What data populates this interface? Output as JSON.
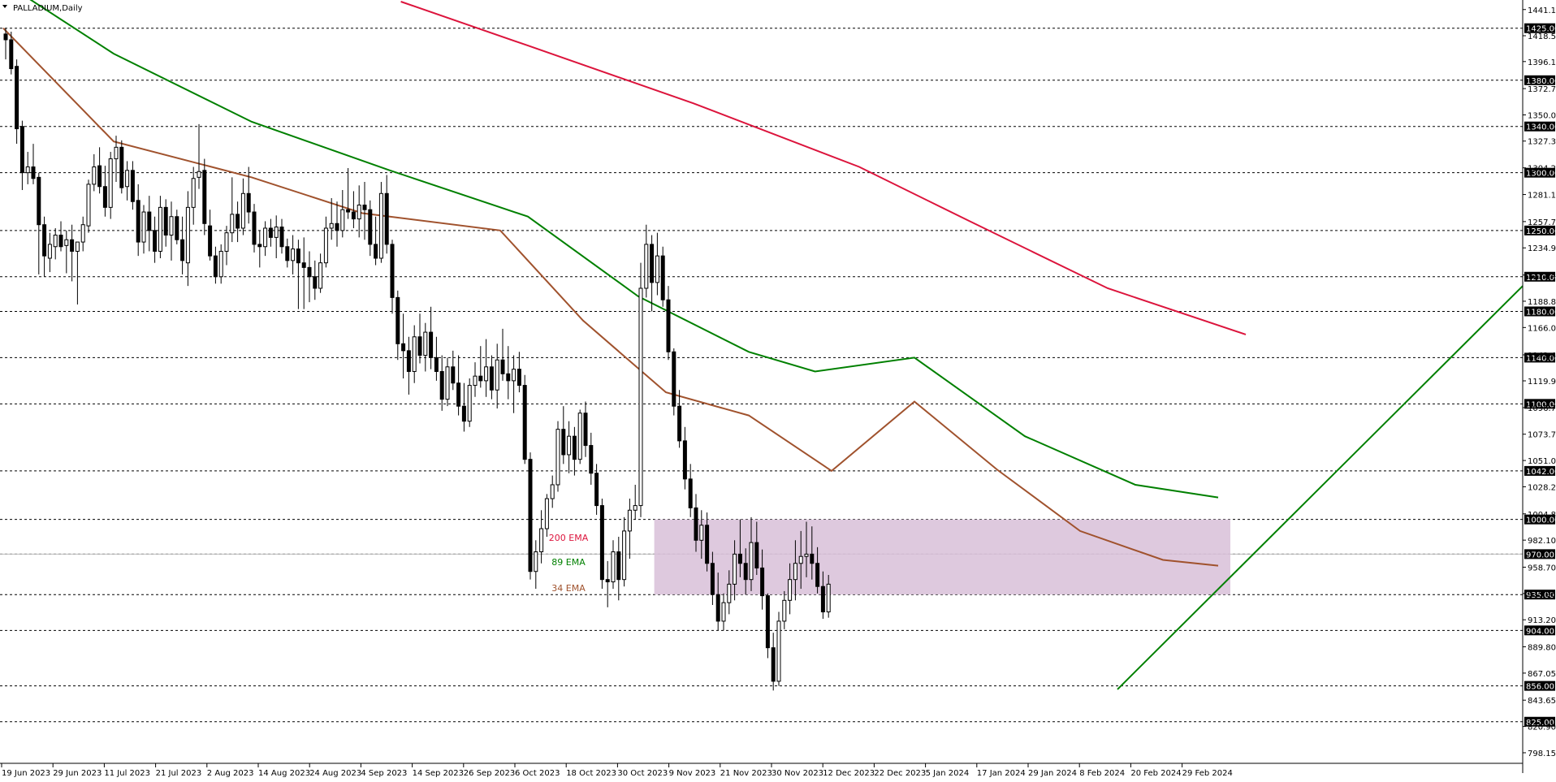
{
  "window": {
    "title": "PALLADIUM,Daily"
  },
  "chart_data": {
    "type": "candlestick",
    "symbol": "PALLADIUM",
    "timeframe": "Daily",
    "title": "PALLADIUM,Daily",
    "ylim": [
      789,
      1448
    ],
    "grid": "horizontal dashed lines at key levels",
    "price_ticks": [
      1441.15,
      1418.5,
      1396.15,
      1372.75,
      1350.0,
      1327.35,
      1304.2,
      1281.1,
      1257.7,
      1234.95,
      1211.45,
      1188.8,
      1166.05,
      1142.4,
      1119.9,
      1096.75,
      1073.75,
      1051.0,
      1028.25,
      1004.85,
      982.1,
      958.7,
      935.95,
      913.2,
      889.8,
      867.05,
      843.65,
      820.9,
      798.15
    ],
    "level_tags": [
      {
        "label": "1425.00",
        "value": 1425,
        "color": "#000000"
      },
      {
        "label": "1380.00",
        "value": 1380,
        "color": "#000000"
      },
      {
        "label": "1340.00",
        "value": 1340,
        "color": "#000000"
      },
      {
        "label": "1300.00",
        "value": 1300,
        "color": "#000000"
      },
      {
        "label": "1250.00",
        "value": 1250,
        "color": "#000000"
      },
      {
        "label": "1210.00",
        "value": 1210,
        "color": "#000000"
      },
      {
        "label": "1180.00",
        "value": 1180,
        "color": "#000000"
      },
      {
        "label": "1140.00",
        "value": 1140,
        "color": "#000000"
      },
      {
        "label": "1100.00",
        "value": 1100,
        "color": "#000000"
      },
      {
        "label": "1042.00",
        "value": 1042,
        "color": "#000000"
      },
      {
        "label": "1000.00",
        "value": 1000,
        "color": "#000000"
      },
      {
        "label": "970.00",
        "value": 970,
        "color": "#000000"
      },
      {
        "label": "935.00",
        "value": 935,
        "color": "#000000"
      },
      {
        "label": "904.00",
        "value": 904,
        "color": "#000000"
      },
      {
        "label": "856.00",
        "value": 856,
        "color": "#000000"
      },
      {
        "label": "825.00",
        "value": 825,
        "color": "#000000"
      }
    ],
    "date_ticks": [
      "19 Jun 2023",
      "29 Jun 2023",
      "11 Jul 2023",
      "21 Jul 2023",
      "2 Aug 2023",
      "14 Aug 2023",
      "24 Aug 2023",
      "4 Sep 2023",
      "14 Sep 2023",
      "26 Sep 2023",
      "6 Oct 2023",
      "18 Oct 2023",
      "30 Oct 2023",
      "9 Nov 2023",
      "21 Nov 2023",
      "30 Nov 2023",
      "12 Dec 2023",
      "22 Dec 2023",
      "5 Jan 2024",
      "17 Jan 2024",
      "29 Jan 2024",
      "8 Feb 2024",
      "20 Feb 2024",
      "29 Feb 2024"
    ],
    "zone": {
      "from_date_index": 13,
      "to_date_index": 24,
      "low": 935,
      "high": 1000,
      "color": "#d8bfd8"
    },
    "annotations": [
      {
        "text": "200 EMA",
        "color": "#dc143c"
      },
      {
        "text": "89 EMA",
        "color": "#008000"
      },
      {
        "text": "34 EMA",
        "color": "#a0522d"
      }
    ],
    "trendline": {
      "color": "#008000",
      "from": {
        "bar": 198,
        "price": 853
      },
      "to": {
        "bar": 280,
        "price": 1202
      }
    },
    "series": [
      {
        "name": "200 EMA",
        "color": "#dc143c",
        "points": [
          [
            72,
            1448
          ],
          [
            95,
            1410
          ],
          [
            125,
            1360
          ],
          [
            155,
            1305
          ],
          [
            175,
            1258
          ],
          [
            200,
            1200
          ],
          [
            225,
            1160
          ]
        ]
      },
      {
        "name": "89 EMA",
        "color": "#008000",
        "points": [
          [
            0,
            1465
          ],
          [
            20,
            1403
          ],
          [
            45,
            1344
          ],
          [
            70,
            1302
          ],
          [
            95,
            1262
          ],
          [
            115,
            1193
          ],
          [
            135,
            1145
          ],
          [
            147,
            1128
          ],
          [
            165,
            1140
          ],
          [
            185,
            1072
          ],
          [
            205,
            1030
          ],
          [
            220,
            1019
          ]
        ]
      },
      {
        "name": "34 EMA",
        "color": "#a0522d",
        "points": [
          [
            0,
            1425
          ],
          [
            20,
            1327
          ],
          [
            45,
            1296
          ],
          [
            65,
            1265
          ],
          [
            90,
            1250
          ],
          [
            105,
            1172
          ],
          [
            120,
            1110
          ],
          [
            135,
            1090
          ],
          [
            150,
            1042
          ],
          [
            165,
            1102
          ],
          [
            180,
            1043
          ],
          [
            195,
            990
          ],
          [
            210,
            965
          ],
          [
            220,
            960
          ]
        ]
      }
    ],
    "candles": [
      [
        1420,
        1425,
        1398,
        1415
      ],
      [
        1415,
        1422,
        1385,
        1390
      ],
      [
        1392,
        1398,
        1325,
        1338
      ],
      [
        1340,
        1345,
        1285,
        1300
      ],
      [
        1300,
        1318,
        1290,
        1305
      ],
      [
        1305,
        1325,
        1290,
        1295
      ],
      [
        1296,
        1300,
        1212,
        1255
      ],
      [
        1255,
        1262,
        1210,
        1228
      ],
      [
        1226,
        1248,
        1214,
        1238
      ],
      [
        1236,
        1252,
        1225,
        1246
      ],
      [
        1246,
        1258,
        1232,
        1236
      ],
      [
        1237,
        1250,
        1213,
        1242
      ],
      [
        1242,
        1255,
        1206,
        1232
      ],
      [
        1232,
        1238,
        1186,
        1240
      ],
      [
        1240,
        1262,
        1232,
        1255
      ],
      [
        1254,
        1294,
        1248,
        1290
      ],
      [
        1290,
        1316,
        1284,
        1305
      ],
      [
        1306,
        1322,
        1282,
        1288
      ],
      [
        1288,
        1306,
        1262,
        1270
      ],
      [
        1270,
        1318,
        1260,
        1312
      ],
      [
        1312,
        1332,
        1292,
        1322
      ],
      [
        1322,
        1328,
        1282,
        1287
      ],
      [
        1288,
        1310,
        1276,
        1302
      ],
      [
        1302,
        1310,
        1268,
        1275
      ],
      [
        1276,
        1290,
        1228,
        1240
      ],
      [
        1240,
        1272,
        1230,
        1266
      ],
      [
        1266,
        1280,
        1232,
        1250
      ],
      [
        1250,
        1262,
        1222,
        1232
      ],
      [
        1232,
        1280,
        1226,
        1270
      ],
      [
        1270,
        1277,
        1236,
        1246
      ],
      [
        1246,
        1275,
        1224,
        1262
      ],
      [
        1262,
        1268,
        1238,
        1242
      ],
      [
        1242,
        1262,
        1212,
        1224
      ],
      [
        1222,
        1284,
        1202,
        1270
      ],
      [
        1270,
        1305,
        1255,
        1295
      ],
      [
        1296,
        1342,
        1286,
        1301
      ],
      [
        1302,
        1312,
        1246,
        1256
      ],
      [
        1254,
        1268,
        1224,
        1228
      ],
      [
        1228,
        1236,
        1204,
        1210
      ],
      [
        1210,
        1238,
        1204,
        1232
      ],
      [
        1232,
        1254,
        1220,
        1248
      ],
      [
        1248,
        1296,
        1240,
        1264
      ],
      [
        1264,
        1275,
        1240,
        1252
      ],
      [
        1252,
        1295,
        1246,
        1282
      ],
      [
        1282,
        1305,
        1256,
        1266
      ],
      [
        1266,
        1273,
        1231,
        1238
      ],
      [
        1238,
        1250,
        1218,
        1236
      ],
      [
        1236,
        1258,
        1228,
        1252
      ],
      [
        1252,
        1260,
        1236,
        1244
      ],
      [
        1244,
        1263,
        1226,
        1253
      ],
      [
        1253,
        1260,
        1230,
        1236
      ],
      [
        1236,
        1243,
        1218,
        1224
      ],
      [
        1224,
        1246,
        1212,
        1234
      ],
      [
        1234,
        1242,
        1182,
        1222
      ],
      [
        1222,
        1244,
        1182,
        1218
      ],
      [
        1218,
        1232,
        1188,
        1210
      ],
      [
        1210,
        1224,
        1190,
        1200
      ],
      [
        1200,
        1230,
        1196,
        1222
      ],
      [
        1222,
        1262,
        1218,
        1252
      ],
      [
        1252,
        1278,
        1242,
        1256
      ],
      [
        1256,
        1275,
        1236,
        1250
      ],
      [
        1250,
        1285,
        1244,
        1268
      ],
      [
        1268,
        1304,
        1260,
        1266
      ],
      [
        1266,
        1284,
        1252,
        1260
      ],
      [
        1260,
        1289,
        1244,
        1272
      ],
      [
        1272,
        1292,
        1242,
        1268
      ],
      [
        1268,
        1276,
        1228,
        1238
      ],
      [
        1238,
        1262,
        1220,
        1226
      ],
      [
        1226,
        1292,
        1222,
        1282
      ],
      [
        1282,
        1298,
        1230,
        1238
      ],
      [
        1238,
        1242,
        1178,
        1192
      ],
      [
        1192,
        1198,
        1138,
        1152
      ],
      [
        1152,
        1178,
        1122,
        1146
      ],
      [
        1146,
        1158,
        1108,
        1128
      ],
      [
        1128,
        1168,
        1118,
        1158
      ],
      [
        1158,
        1178,
        1135,
        1142
      ],
      [
        1142,
        1170,
        1128,
        1162
      ],
      [
        1162,
        1184,
        1130,
        1140
      ],
      [
        1140,
        1158,
        1120,
        1128
      ],
      [
        1128,
        1142,
        1094,
        1104
      ],
      [
        1104,
        1140,
        1098,
        1132
      ],
      [
        1132,
        1146,
        1112,
        1118
      ],
      [
        1118,
        1142,
        1090,
        1098
      ],
      [
        1098,
        1118,
        1076,
        1085
      ],
      [
        1085,
        1122,
        1080,
        1116
      ],
      [
        1116,
        1136,
        1106,
        1124
      ],
      [
        1124,
        1150,
        1114,
        1120
      ],
      [
        1120,
        1156,
        1106,
        1132
      ],
      [
        1132,
        1142,
        1104,
        1112
      ],
      [
        1112,
        1152,
        1096,
        1138
      ],
      [
        1138,
        1165,
        1120,
        1126
      ],
      [
        1126,
        1150,
        1104,
        1120
      ],
      [
        1120,
        1142,
        1092,
        1130
      ],
      [
        1130,
        1145,
        1110,
        1116
      ],
      [
        1116,
        1125,
        1048,
        1052
      ],
      [
        1052,
        1058,
        948,
        955
      ],
      [
        955,
        982,
        940,
        972
      ],
      [
        972,
        1008,
        962,
        992
      ],
      [
        992,
        1022,
        985,
        1018
      ],
      [
        1018,
        1038,
        1010,
        1030
      ],
      [
        1030,
        1085,
        1024,
        1078
      ],
      [
        1078,
        1098,
        1048,
        1056
      ],
      [
        1056,
        1085,
        1040,
        1072
      ],
      [
        1072,
        1080,
        1038,
        1052
      ],
      [
        1052,
        1095,
        1048,
        1092
      ],
      [
        1092,
        1102,
        1054,
        1064
      ],
      [
        1064,
        1075,
        1030,
        1040
      ],
      [
        1040,
        1048,
        1004,
        1012
      ],
      [
        1012,
        1018,
        940,
        948
      ],
      [
        948,
        964,
        924,
        946
      ],
      [
        946,
        982,
        940,
        972
      ],
      [
        972,
        985,
        930,
        948
      ],
      [
        948,
        1002,
        942,
        990
      ],
      [
        990,
        1018,
        966,
        1008
      ],
      [
        1008,
        1030,
        1000,
        1012
      ],
      [
        1012,
        1222,
        1002,
        1200
      ],
      [
        1200,
        1255,
        1192,
        1238
      ],
      [
        1238,
        1246,
        1180,
        1205
      ],
      [
        1205,
        1248,
        1194,
        1228
      ],
      [
        1228,
        1236,
        1184,
        1190
      ],
      [
        1190,
        1202,
        1138,
        1145
      ],
      [
        1145,
        1148,
        1090,
        1098
      ],
      [
        1098,
        1112,
        1062,
        1068
      ],
      [
        1068,
        1080,
        1026,
        1035
      ],
      [
        1035,
        1048,
        1002,
        1010
      ],
      [
        1010,
        1022,
        972,
        982
      ],
      [
        982,
        1008,
        966,
        995
      ],
      [
        995,
        1006,
        955,
        962
      ],
      [
        962,
        972,
        926,
        935
      ],
      [
        935,
        954,
        904,
        912
      ],
      [
        912,
        936,
        904,
        928
      ],
      [
        928,
        956,
        918,
        944
      ],
      [
        944,
        982,
        930,
        970
      ],
      [
        970,
        1000,
        950,
        962
      ],
      [
        962,
        975,
        935,
        948
      ],
      [
        948,
        1002,
        938,
        980
      ],
      [
        980,
        998,
        952,
        958
      ],
      [
        958,
        974,
        922,
        934
      ],
      [
        934,
        936,
        880,
        889
      ],
      [
        889,
        902,
        852,
        860
      ],
      [
        860,
        920,
        856,
        912
      ],
      [
        912,
        938,
        905,
        930
      ],
      [
        930,
        962,
        918,
        948
      ],
      [
        948,
        982,
        930,
        962
      ],
      [
        962,
        990,
        940,
        968
      ],
      [
        968,
        998,
        950,
        970
      ],
      [
        970,
        994,
        948,
        962
      ],
      [
        962,
        976,
        936,
        942
      ],
      [
        942,
        955,
        914,
        920
      ],
      [
        920,
        952,
        915,
        944
      ]
    ]
  }
}
